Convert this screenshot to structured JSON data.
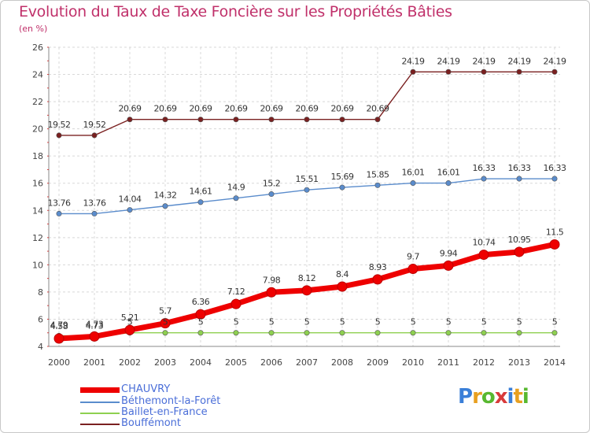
{
  "title": "Evolution du Taux de Taxe Foncière sur les Propriétés Bâties",
  "subtitle": "(en %)",
  "logo": {
    "text": "Proxiti",
    "colors": [
      "#3a7fd8",
      "#e8a020",
      "#58b830",
      "#d83a3a",
      "#3a7fd8",
      "#e8a020",
      "#58b830"
    ]
  },
  "chart_data": {
    "type": "line",
    "categories": [
      "2000",
      "2001",
      "2002",
      "2003",
      "2004",
      "2005",
      "2006",
      "2007",
      "2008",
      "2009",
      "2010",
      "2011",
      "2012",
      "2013",
      "2014"
    ],
    "ylim": [
      4,
      26
    ],
    "yticks": [
      "4",
      "6",
      "8",
      "10",
      "12",
      "14",
      "16",
      "18",
      "20",
      "22",
      "24",
      "26"
    ],
    "grid": true,
    "series": [
      {
        "name": "Bouffémont",
        "color": "#7a2020",
        "values": [
          19.52,
          19.52,
          20.69,
          20.69,
          20.69,
          20.69,
          20.69,
          20.69,
          20.69,
          20.69,
          24.19,
          24.19,
          24.19,
          24.19,
          24.19
        ],
        "labels": [
          "19.52",
          "19.52",
          "20.69",
          "20.69",
          "20.69",
          "20.69",
          "20.69",
          "20.69",
          "20.69",
          "20.69",
          "24.19",
          "24.19",
          "24.19",
          "24.19",
          "24.19"
        ]
      },
      {
        "name": "Béthemont-la-Forêt",
        "color": "#5a8ccc",
        "values": [
          13.76,
          13.76,
          14.04,
          14.32,
          14.61,
          14.9,
          15.2,
          15.51,
          15.69,
          15.85,
          16.01,
          16.01,
          16.33,
          16.33,
          16.33
        ],
        "labels": [
          "13.76",
          "13.76",
          "14.04",
          "14.32",
          "14.61",
          "14.9",
          "15.2",
          "15.51",
          "15.69",
          "15.85",
          "16.01",
          "16.01",
          "16.33",
          "16.33",
          "16.33"
        ]
      },
      {
        "name": "Baillet-en-France",
        "color": "#8ed050",
        "values": [
          4.79,
          4.73,
          5,
          5,
          5,
          5,
          5,
          5,
          5,
          5,
          5,
          5,
          5,
          5,
          5
        ],
        "labels": [
          "4.79",
          "4.73",
          "5",
          "5",
          "5",
          "5",
          "5",
          "5",
          "5",
          "5",
          "5",
          "5",
          "5",
          "5",
          "5"
        ]
      },
      {
        "name": "CHAUVRY",
        "color": "#ee0000",
        "values": [
          4.58,
          4.73,
          5.21,
          5.7,
          6.36,
          7.12,
          7.98,
          8.12,
          8.4,
          8.93,
          9.7,
          9.94,
          10.74,
          10.95,
          11.5
        ],
        "labels": [
          "4.58",
          "4.73",
          "5.21",
          "5.7",
          "6.36",
          "7.12",
          "7.98",
          "8.12",
          "8.4",
          "8.93",
          "9.7",
          "9.94",
          "10.74",
          "10.95",
          "11.5"
        ]
      }
    ],
    "legend": [
      {
        "name": "CHAUVRY",
        "color": "#ee0000"
      },
      {
        "name": "Béthemont-la-Forêt",
        "color": "#5a8ccc"
      },
      {
        "name": "Baillet-en-France",
        "color": "#8ed050"
      },
      {
        "name": "Bouffémont",
        "color": "#7a2020"
      }
    ],
    "legend_position": "bottom-left"
  }
}
